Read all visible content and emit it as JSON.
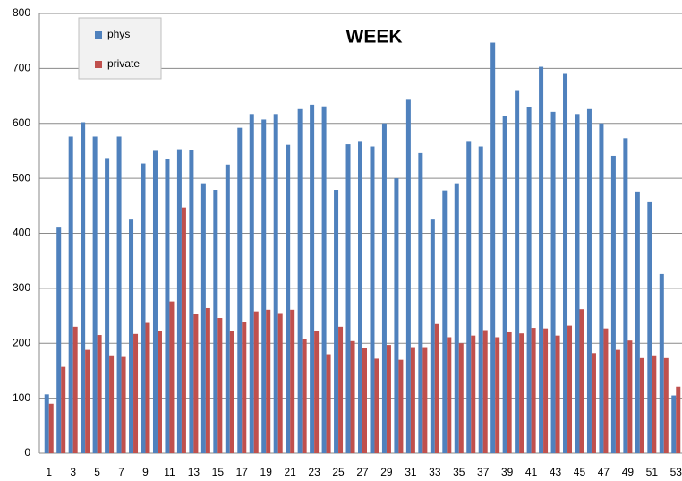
{
  "chart_data": {
    "type": "bar",
    "title": "WEEK",
    "categories": [
      1,
      null,
      3,
      null,
      5,
      null,
      7,
      null,
      9,
      null,
      11,
      null,
      13,
      null,
      15,
      null,
      17,
      null,
      19,
      null,
      21,
      null,
      23,
      null,
      25,
      null,
      27,
      null,
      29,
      null,
      31,
      null,
      33,
      null,
      35,
      null,
      37,
      null,
      39,
      null,
      41,
      null,
      43,
      null,
      45,
      null,
      47,
      null,
      49,
      null,
      51,
      null,
      53
    ],
    "series": [
      {
        "name": "phys",
        "color": "#4f81bd",
        "values": [
          107,
          412,
          576,
          602,
          576,
          537,
          576,
          425,
          527,
          550,
          535,
          553,
          551,
          491,
          479,
          525,
          592,
          617,
          607,
          617,
          561,
          626,
          634,
          631,
          479,
          562,
          568,
          558,
          600,
          500,
          643,
          546,
          425,
          478,
          491,
          568,
          558,
          747,
          613,
          659,
          630,
          703,
          621,
          690,
          617,
          626,
          600,
          541,
          573,
          476,
          458,
          326,
          105
        ]
      },
      {
        "name": "private",
        "color": "#c0504d",
        "values": [
          90,
          157,
          230,
          188,
          215,
          178,
          175,
          217,
          237,
          223,
          276,
          447,
          253,
          264,
          246,
          223,
          238,
          258,
          261,
          255,
          261,
          207,
          223,
          180,
          230,
          204,
          191,
          172,
          197,
          170,
          193,
          193,
          235,
          211,
          200,
          214,
          224,
          211,
          220,
          218,
          228,
          227,
          214,
          232,
          262,
          182,
          227,
          188,
          205,
          173,
          178,
          173,
          121
        ]
      }
    ],
    "ylim": [
      0,
      800
    ],
    "yticks": [
      0,
      100,
      200,
      300,
      400,
      500,
      600,
      700,
      800
    ],
    "grid": true,
    "legend": "upper left"
  }
}
